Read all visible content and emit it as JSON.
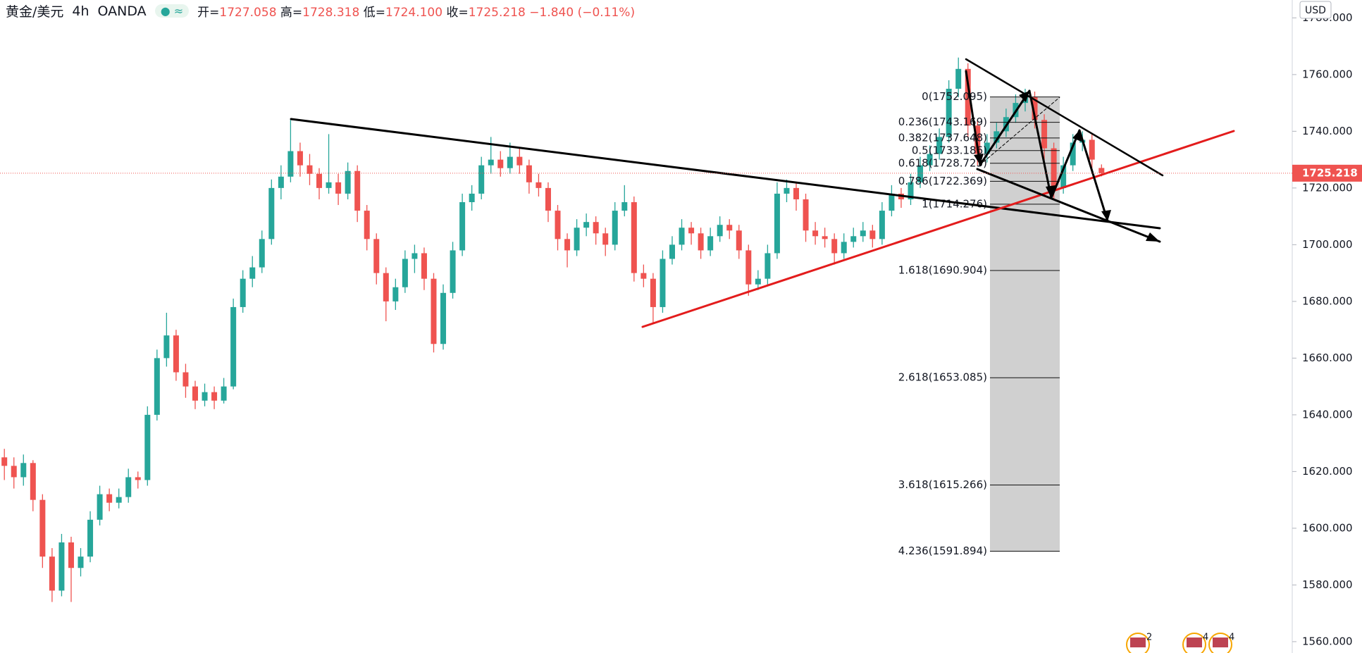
{
  "header": {
    "symbol": "黄金/美元",
    "interval": "4h",
    "source": "OANDA",
    "ohlc": [
      {
        "key": "开=",
        "value": "1727.058"
      },
      {
        "key": "高=",
        "value": "1728.318"
      },
      {
        "key": "低=",
        "value": "1724.100"
      },
      {
        "key": "收=",
        "value": "1725.218"
      }
    ],
    "change": "−1.840 (−0.11%)"
  },
  "chart_data": {
    "type": "candlestick",
    "currency": "USD",
    "up_color": "#26a69a",
    "down_color": "#ef5350",
    "candles": [
      [
        1625,
        1628,
        1617,
        1622
      ],
      [
        1622,
        1625,
        1614,
        1618
      ],
      [
        1618,
        1626,
        1615,
        1623
      ],
      [
        1623,
        1624,
        1606,
        1610
      ],
      [
        1610,
        1612,
        1586,
        1590
      ],
      [
        1590,
        1593,
        1574,
        1578
      ],
      [
        1578,
        1598,
        1576,
        1595
      ],
      [
        1595,
        1597,
        1574,
        1586
      ],
      [
        1586,
        1593,
        1583,
        1590
      ],
      [
        1590,
        1606,
        1588,
        1603
      ],
      [
        1603,
        1615,
        1601,
        1612
      ],
      [
        1612,
        1614,
        1606,
        1609
      ],
      [
        1609,
        1614,
        1607,
        1611
      ],
      [
        1611,
        1621,
        1609,
        1618
      ],
      [
        1618,
        1620,
        1614,
        1617
      ],
      [
        1617,
        1643,
        1615,
        1640
      ],
      [
        1640,
        1663,
        1638,
        1660
      ],
      [
        1660,
        1676,
        1657,
        1668
      ],
      [
        1668,
        1670,
        1652,
        1655
      ],
      [
        1655,
        1658,
        1646,
        1650
      ],
      [
        1650,
        1652,
        1642,
        1645
      ],
      [
        1645,
        1651,
        1643,
        1648
      ],
      [
        1648,
        1650,
        1642,
        1645
      ],
      [
        1645,
        1653,
        1644,
        1650
      ],
      [
        1650,
        1681,
        1649,
        1678
      ],
      [
        1678,
        1691,
        1676,
        1688
      ],
      [
        1688,
        1696,
        1685,
        1692
      ],
      [
        1692,
        1705,
        1690,
        1702
      ],
      [
        1702,
        1723,
        1700,
        1720
      ],
      [
        1720,
        1728,
        1716,
        1724
      ],
      [
        1724,
        1744,
        1722,
        1733
      ],
      [
        1733,
        1736,
        1724,
        1728
      ],
      [
        1728,
        1732,
        1721,
        1725
      ],
      [
        1725,
        1727,
        1716,
        1720
      ],
      [
        1720,
        1739,
        1718,
        1722
      ],
      [
        1722,
        1725,
        1714,
        1718
      ],
      [
        1718,
        1729,
        1716,
        1726
      ],
      [
        1726,
        1728,
        1708,
        1712
      ],
      [
        1712,
        1714,
        1698,
        1702
      ],
      [
        1702,
        1704,
        1686,
        1690
      ],
      [
        1690,
        1692,
        1673,
        1680
      ],
      [
        1680,
        1688,
        1677,
        1685
      ],
      [
        1685,
        1698,
        1683,
        1695
      ],
      [
        1695,
        1700,
        1690,
        1697
      ],
      [
        1697,
        1699,
        1684,
        1688
      ],
      [
        1688,
        1690,
        1662,
        1665
      ],
      [
        1665,
        1686,
        1663,
        1683
      ],
      [
        1683,
        1701,
        1681,
        1698
      ],
      [
        1698,
        1718,
        1696,
        1715
      ],
      [
        1715,
        1721,
        1712,
        1718
      ],
      [
        1718,
        1731,
        1716,
        1728
      ],
      [
        1728,
        1738,
        1725,
        1730
      ],
      [
        1730,
        1733,
        1724,
        1727
      ],
      [
        1727,
        1736,
        1725,
        1731
      ],
      [
        1731,
        1734,
        1725,
        1728
      ],
      [
        1728,
        1730,
        1718,
        1722
      ],
      [
        1722,
        1725,
        1717,
        1720
      ],
      [
        1720,
        1722,
        1708,
        1712
      ],
      [
        1712,
        1714,
        1698,
        1702
      ],
      [
        1702,
        1704,
        1692,
        1698
      ],
      [
        1698,
        1709,
        1696,
        1706
      ],
      [
        1706,
        1711,
        1703,
        1708
      ],
      [
        1708,
        1710,
        1700,
        1704
      ],
      [
        1704,
        1706,
        1696,
        1700
      ],
      [
        1700,
        1715,
        1698,
        1712
      ],
      [
        1712,
        1721,
        1710,
        1715
      ],
      [
        1715,
        1717,
        1687,
        1690
      ],
      [
        1690,
        1693,
        1685,
        1688
      ],
      [
        1688,
        1690,
        1672,
        1678
      ],
      [
        1678,
        1698,
        1676,
        1695
      ],
      [
        1695,
        1703,
        1693,
        1700
      ],
      [
        1700,
        1709,
        1698,
        1706
      ],
      [
        1706,
        1708,
        1700,
        1704
      ],
      [
        1704,
        1706,
        1695,
        1698
      ],
      [
        1698,
        1706,
        1696,
        1703
      ],
      [
        1703,
        1710,
        1701,
        1707
      ],
      [
        1707,
        1709,
        1702,
        1705
      ],
      [
        1705,
        1707,
        1695,
        1698
      ],
      [
        1698,
        1700,
        1682,
        1686
      ],
      [
        1686,
        1691,
        1684,
        1688
      ],
      [
        1688,
        1700,
        1686,
        1697
      ],
      [
        1697,
        1722,
        1695,
        1718
      ],
      [
        1718,
        1723,
        1715,
        1720
      ],
      [
        1720,
        1722,
        1712,
        1716
      ],
      [
        1716,
        1718,
        1701,
        1705
      ],
      [
        1705,
        1708,
        1700,
        1703
      ],
      [
        1703,
        1706,
        1699,
        1702
      ],
      [
        1702,
        1704,
        1693,
        1697
      ],
      [
        1697,
        1704,
        1695,
        1701
      ],
      [
        1701,
        1706,
        1699,
        1703
      ],
      [
        1703,
        1708,
        1701,
        1705
      ],
      [
        1705,
        1707,
        1699,
        1702
      ],
      [
        1702,
        1715,
        1700,
        1712
      ],
      [
        1712,
        1721,
        1710,
        1718
      ],
      [
        1718,
        1720,
        1713,
        1716
      ],
      [
        1716,
        1725,
        1714,
        1722
      ],
      [
        1722,
        1731,
        1720,
        1728
      ],
      [
        1728,
        1735,
        1726,
        1732
      ],
      [
        1732,
        1741,
        1730,
        1738
      ],
      [
        1738,
        1758,
        1736,
        1755
      ],
      [
        1755,
        1766,
        1752,
        1762
      ],
      [
        1762,
        1764,
        1738,
        1742
      ],
      [
        1742,
        1744,
        1728,
        1732
      ],
      [
        1732,
        1739,
        1729,
        1736
      ],
      [
        1736,
        1743,
        1734,
        1740
      ],
      [
        1740,
        1748,
        1738,
        1745
      ],
      [
        1745,
        1753,
        1743,
        1750
      ],
      [
        1750,
        1755,
        1747,
        1752
      ],
      [
        1752,
        1754,
        1741,
        1744
      ],
      [
        1744,
        1746,
        1730,
        1734
      ],
      [
        1734,
        1736,
        1716,
        1720
      ],
      [
        1720,
        1731,
        1718,
        1728
      ],
      [
        1728,
        1739,
        1726,
        1736
      ],
      [
        1736,
        1740,
        1733,
        1737
      ],
      [
        1737,
        1739,
        1727,
        1730
      ],
      [
        1727.058,
        1728.318,
        1724.1,
        1725.218
      ]
    ],
    "ylim": [
      1556,
      1786.3
    ],
    "yticks": [
      {
        "value": 1560,
        "label": "1560.000"
      },
      {
        "value": 1580,
        "label": "1580.000"
      },
      {
        "value": 1600,
        "label": "1600.000"
      },
      {
        "value": 1620,
        "label": "1620.000"
      },
      {
        "value": 1640,
        "label": "1640.000"
      },
      {
        "value": 1660,
        "label": "1660.000"
      },
      {
        "value": 1680,
        "label": "1680.000"
      },
      {
        "value": 1700,
        "label": "1700.000"
      },
      {
        "value": 1720,
        "label": "1720.000"
      },
      {
        "value": 1740,
        "label": "1740.000"
      },
      {
        "value": 1760,
        "label": "1760.000"
      },
      {
        "value": 1780,
        "label": "1780.000"
      }
    ],
    "last_price": {
      "value": 1725.218,
      "label": "1725.218"
    },
    "fib_levels": [
      {
        "value": 1752.095,
        "label": "0(1752.095)"
      },
      {
        "value": 1743.169,
        "label": "0.236(1743.169)"
      },
      {
        "value": 1737.648,
        "label": "0.382(1737.648)"
      },
      {
        "value": 1733.186,
        "label": "0.5(1733.186)"
      },
      {
        "value": 1728.723,
        "label": "0.618(1728.723)"
      },
      {
        "value": 1722.369,
        "label": "0.786(1722.369)"
      },
      {
        "value": 1714.276,
        "label": "1(1714.276)"
      },
      {
        "value": 1690.904,
        "label": "1.618(1690.904)"
      },
      {
        "value": 1653.085,
        "label": "2.618(1653.085)"
      },
      {
        "value": 1615.266,
        "label": "3.618(1615.266)"
      },
      {
        "value": 1591.894,
        "label": "4.236(1591.894)"
      }
    ],
    "event_markers": [
      "2",
      "4",
      "4"
    ]
  }
}
